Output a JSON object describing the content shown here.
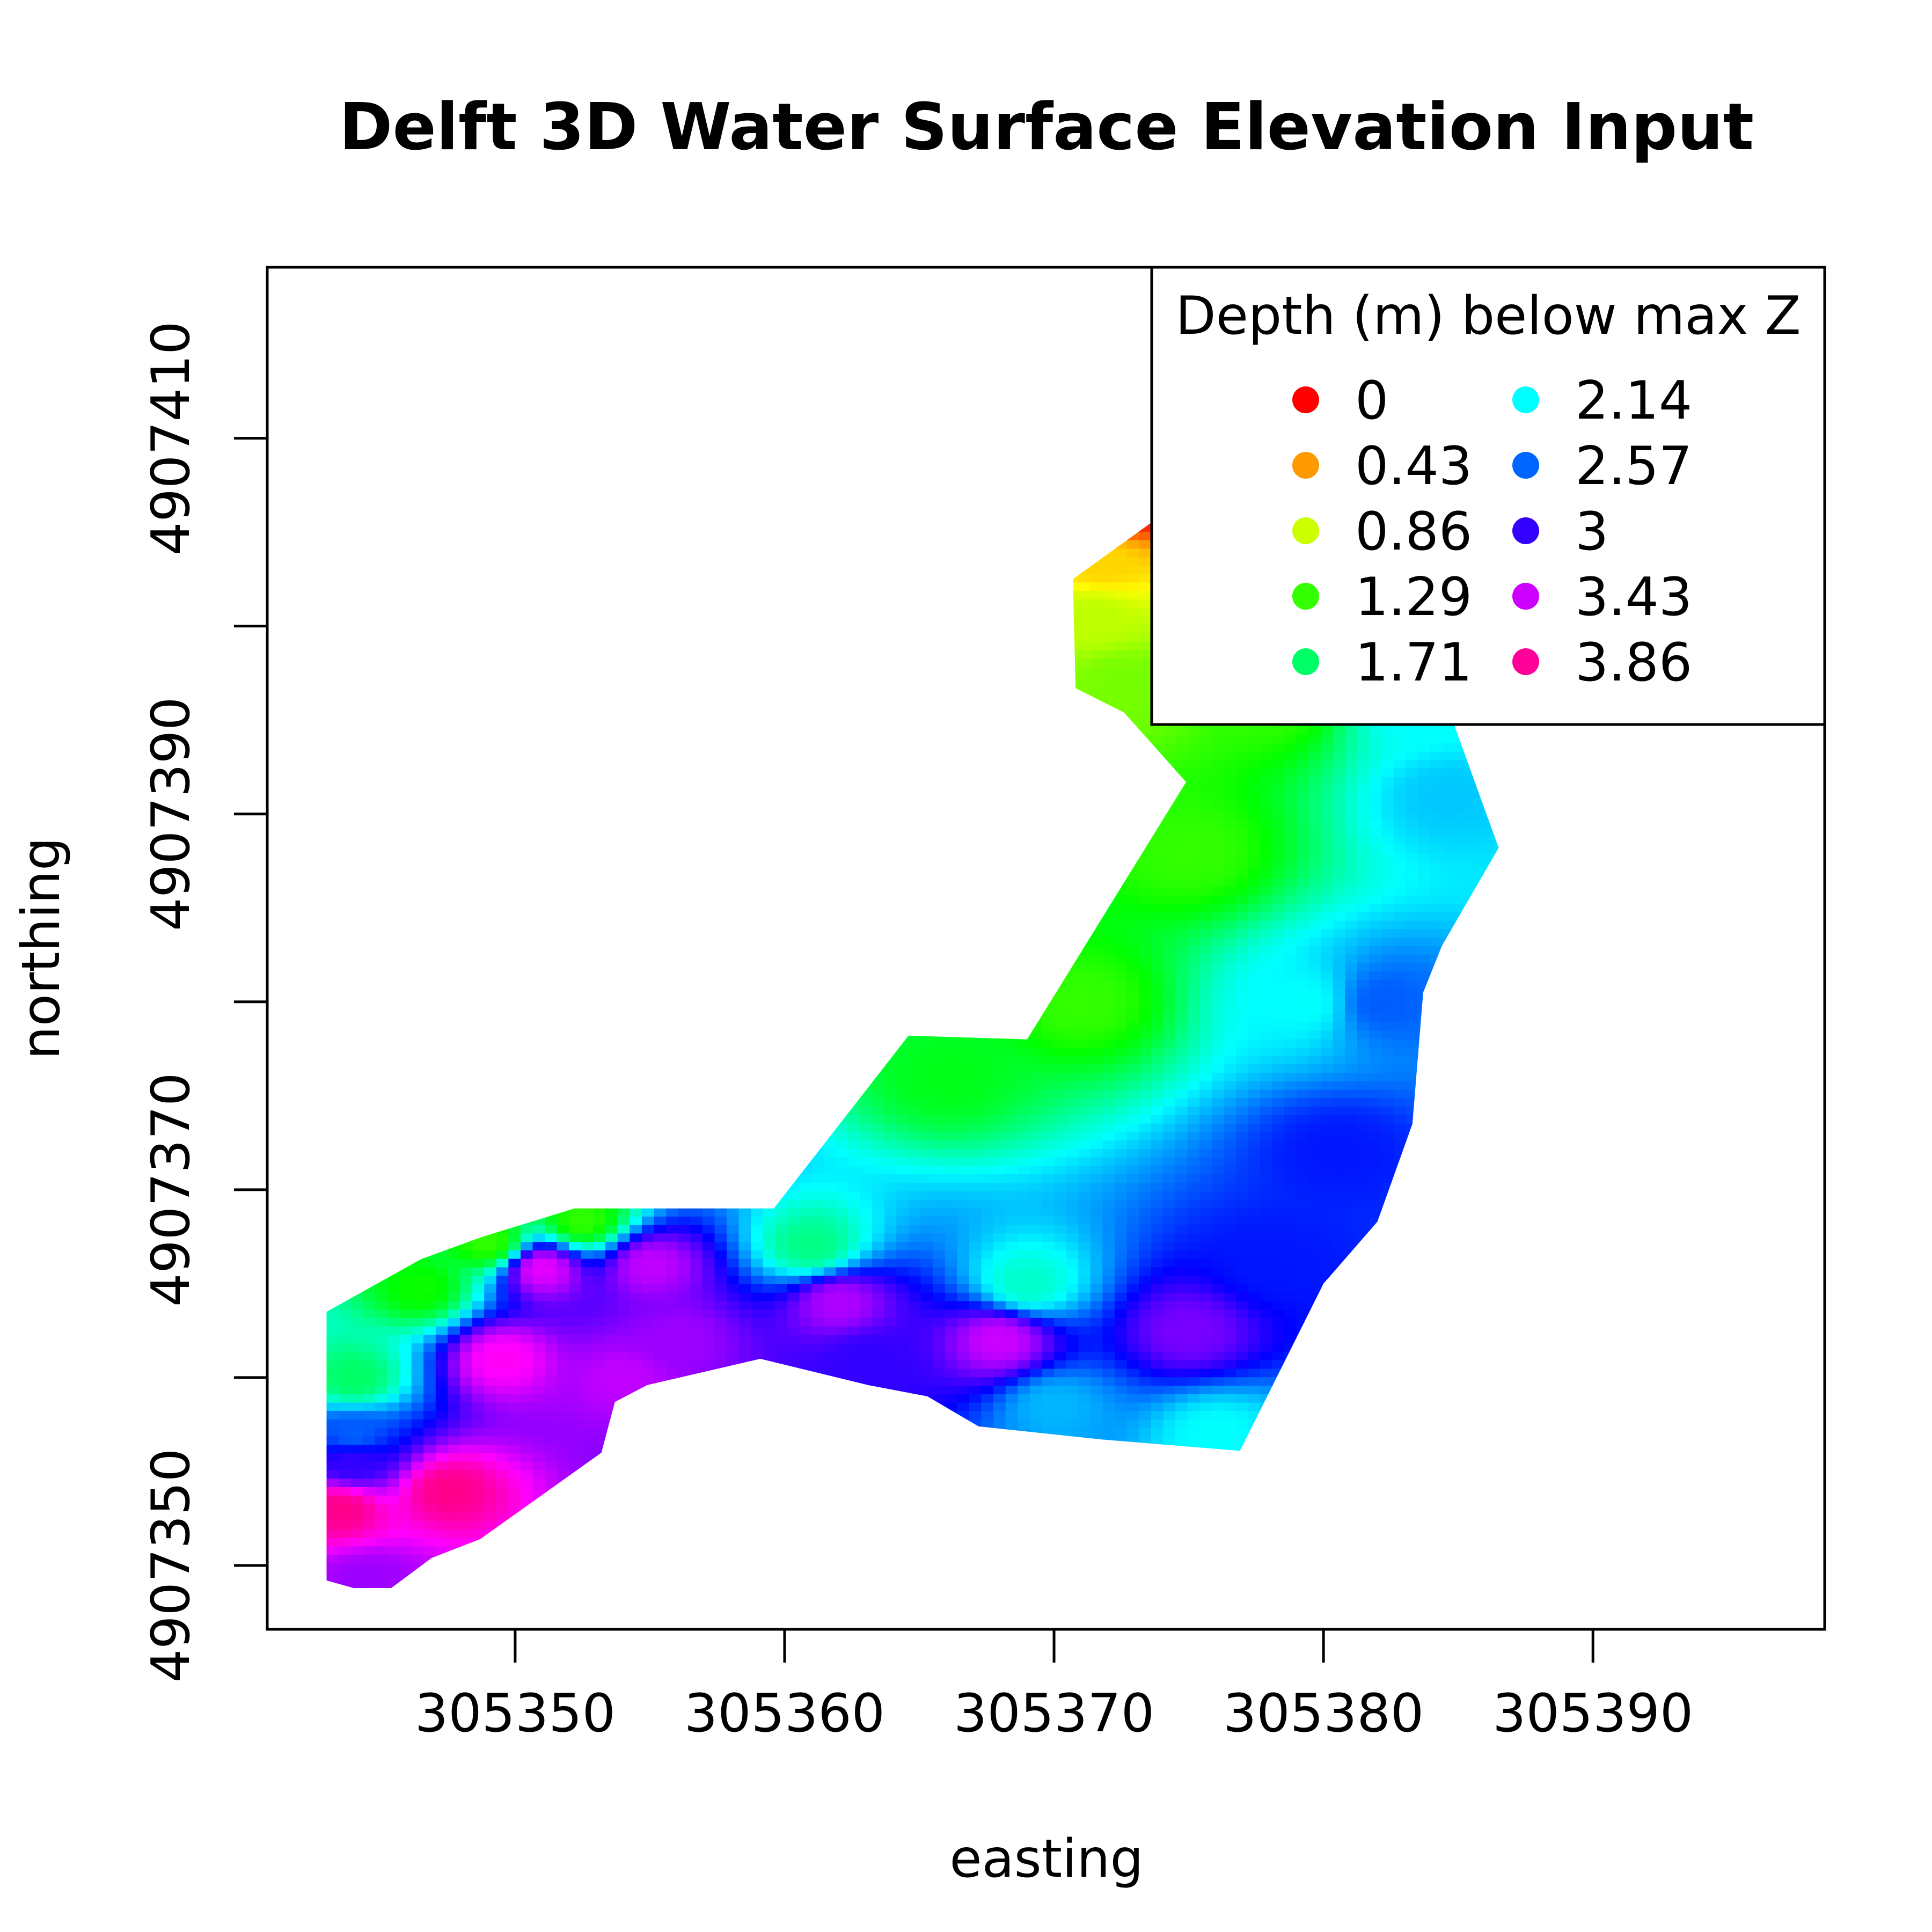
{
  "chart_data": {
    "type": "heatmap",
    "title": "Delft 3D Water Surface Elevation Input",
    "xlabel": "easting",
    "ylabel": "northing",
    "xlim": [
      305340.8,
      305398.6
    ],
    "ylim": [
      4907346.6,
      4907419.1
    ],
    "x_ticks": [
      305350,
      305360,
      305370,
      305380,
      305390
    ],
    "x_tick_labels": [
      "305350",
      "305360",
      "305370",
      "305380",
      "305390"
    ],
    "y_ticks": [
      4907350,
      4907360,
      4907370,
      4907380,
      4907390,
      4907400,
      4907410
    ],
    "y_tick_labels": [
      "4907350",
      "",
      "4907370",
      "",
      "4907390",
      "",
      "4907410"
    ],
    "grid": false,
    "legend": {
      "title": "Depth (m) below max Z",
      "placement": "top-right",
      "entries": [
        {
          "label": "0",
          "value": 0,
          "color": "#ff0000"
        },
        {
          "label": "0.43",
          "value": 0.43,
          "color": "#ff9900"
        },
        {
          "label": "0.86",
          "value": 0.86,
          "color": "#ccff00"
        },
        {
          "label": "1.29",
          "value": 1.29,
          "color": "#33ff00"
        },
        {
          "label": "1.71",
          "value": 1.71,
          "color": "#00ff66"
        },
        {
          "label": "2.14",
          "value": 2.14,
          "color": "#00ffff"
        },
        {
          "label": "2.57",
          "value": 2.57,
          "color": "#0066ff"
        },
        {
          "label": "3",
          "value": 3,
          "color": "#3300ff"
        },
        {
          "label": "3.43",
          "value": 3.43,
          "color": "#cc00ff"
        },
        {
          "label": "3.86",
          "value": 3.86,
          "color": "#ff0099"
        }
      ]
    },
    "domain_outline": [
      [
        305343.0,
        4907363.5
      ],
      [
        305346.5,
        4907366.3
      ],
      [
        305348.8,
        4907367.5
      ],
      [
        305352.2,
        4907369.0
      ],
      [
        305359.6,
        4907369.0
      ],
      [
        305364.6,
        4907378.2
      ],
      [
        305369.0,
        4907378.0
      ],
      [
        305374.9,
        4907391.7
      ],
      [
        305372.6,
        4907395.4
      ],
      [
        305370.8,
        4907396.7
      ],
      [
        305370.7,
        4907402.5
      ],
      [
        305373.6,
        4907405.5
      ],
      [
        305376.8,
        4907407.8
      ],
      [
        305380.5,
        4907409.7
      ],
      [
        305383.3,
        4907409.5
      ],
      [
        305385.2,
        4907408.1
      ],
      [
        305385.9,
        4907406.4
      ],
      [
        305383.8,
        4907398.9
      ],
      [
        305386.5,
        4907388.2
      ],
      [
        305384.4,
        4907383.0
      ],
      [
        305383.7,
        4907380.5
      ],
      [
        305383.3,
        4907373.5
      ],
      [
        305382.0,
        4907368.3
      ],
      [
        305380.0,
        4907365.0
      ],
      [
        305376.9,
        4907356.1
      ],
      [
        305371.8,
        4907356.7
      ],
      [
        305367.2,
        4907357.4
      ],
      [
        305365.3,
        4907359.0
      ],
      [
        305363.1,
        4907359.6
      ],
      [
        305359.1,
        4907361.0
      ],
      [
        305354.9,
        4907359.6
      ],
      [
        305353.7,
        4907358.7
      ],
      [
        305353.2,
        4907356.0
      ],
      [
        305348.7,
        4907351.4
      ],
      [
        305346.9,
        4907350.4
      ],
      [
        305345.4,
        4907348.8
      ],
      [
        305344.0,
        4907348.8
      ],
      [
        305343.0,
        4907349.2
      ]
    ],
    "depth_samples": [
      {
        "x": 305372.8,
        "y": 4907406.6,
        "depth": 0
      },
      {
        "x": 305371.8,
        "y": 4907403.3,
        "depth": 0.6
      },
      {
        "x": 305371.5,
        "y": 4907400.5,
        "depth": 0.9
      },
      {
        "x": 305372.6,
        "y": 4907397.0,
        "depth": 1.1
      },
      {
        "x": 305378.0,
        "y": 4907396.0,
        "depth": 1.29
      },
      {
        "x": 305383.5,
        "y": 4907395.5,
        "depth": 2.14
      },
      {
        "x": 305384.6,
        "y": 4907391.0,
        "depth": 2.3
      },
      {
        "x": 305375.0,
        "y": 4907388.0,
        "depth": 1.29
      },
      {
        "x": 305371.0,
        "y": 4907380.0,
        "depth": 1.29
      },
      {
        "x": 305366.0,
        "y": 4907376.0,
        "depth": 1.5
      },
      {
        "x": 305379.3,
        "y": 4907380.0,
        "depth": 2.14
      },
      {
        "x": 305382.2,
        "y": 4907380.0,
        "depth": 2.6
      },
      {
        "x": 305380.5,
        "y": 4907372.0,
        "depth": 2.8
      },
      {
        "x": 305378.0,
        "y": 4907366.0,
        "depth": 2.8
      },
      {
        "x": 305375.0,
        "y": 4907362.5,
        "depth": 3.2
      },
      {
        "x": 305369.0,
        "y": 4907365.0,
        "depth": 2.0
      },
      {
        "x": 305361.0,
        "y": 4907367.0,
        "depth": 1.8
      },
      {
        "x": 305362.0,
        "y": 4907364.0,
        "depth": 3.35
      },
      {
        "x": 305368.0,
        "y": 4907362.0,
        "depth": 3.43
      },
      {
        "x": 305363.0,
        "y": 4907361.0,
        "depth": 3.0
      },
      {
        "x": 305370.0,
        "y": 4907358.5,
        "depth": 2.35
      },
      {
        "x": 305376.0,
        "y": 4907357.0,
        "depth": 2.14
      },
      {
        "x": 305355.0,
        "y": 4907366.0,
        "depth": 3.4
      },
      {
        "x": 305356.0,
        "y": 4907362.0,
        "depth": 3.3
      },
      {
        "x": 305354.0,
        "y": 4907360.0,
        "depth": 3.4
      },
      {
        "x": 305351.0,
        "y": 4907365.8,
        "depth": 3.5
      },
      {
        "x": 305346.5,
        "y": 4907364.8,
        "depth": 1.4
      },
      {
        "x": 305349.0,
        "y": 4907367.2,
        "depth": 1.3
      },
      {
        "x": 305352.5,
        "y": 4907368.4,
        "depth": 1.3
      },
      {
        "x": 305344.0,
        "y": 4907360.0,
        "depth": 1.71
      },
      {
        "x": 305344.0,
        "y": 4907357.0,
        "depth": 2.6
      },
      {
        "x": 305344.0,
        "y": 4907355.5,
        "depth": 3.0
      },
      {
        "x": 305343.5,
        "y": 4907353.0,
        "depth": 3.9
      },
      {
        "x": 305347.5,
        "y": 4907354.0,
        "depth": 3.9
      },
      {
        "x": 305349.5,
        "y": 4907361.0,
        "depth": 3.6
      },
      {
        "x": 305344.5,
        "y": 4907349.2,
        "depth": 3.3
      }
    ]
  }
}
